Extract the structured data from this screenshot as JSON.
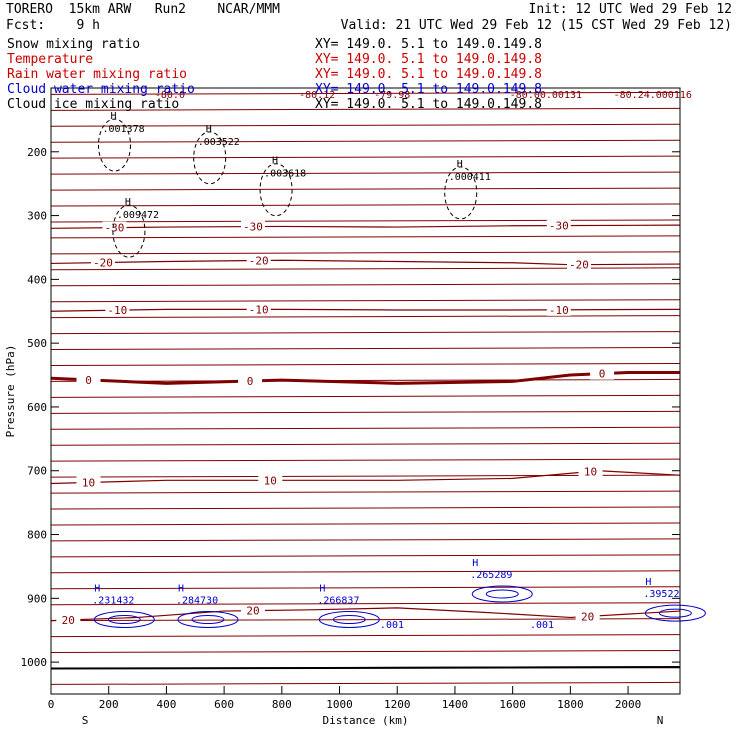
{
  "header": {
    "line1_left": "TORERO  15km ARW   Run2    NCAR/MMM",
    "line1_right": "Init: 12 UTC Wed 29 Feb 12",
    "line2_left": "Fcst:    9 h",
    "line2_right": "Valid: 21 UTC Wed 29 Feb 12 (15 CST Wed 29 Feb 12)"
  },
  "colors": {
    "snow": "#000000",
    "temperature": "#800000",
    "rain": "#cc0000",
    "cloud_water": "#0000cc",
    "cloud_ice": "#000000"
  },
  "chart_data": {
    "type": "contour",
    "xlabel": "Distance (km)",
    "ylabel": "Pressure (hPa)",
    "xlim": [
      0,
      2180
    ],
    "ylim": [
      1050,
      100
    ],
    "x_ticks": [
      0,
      200,
      400,
      600,
      800,
      1000,
      1200,
      1400,
      1600,
      1800,
      2000
    ],
    "y_ticks": [
      200,
      300,
      400,
      500,
      600,
      700,
      800,
      900,
      1000
    ],
    "x_end_labels": {
      "left": "S",
      "right": "N"
    },
    "legend": [
      {
        "name": "Snow mixing ratio",
        "range": "XY= 149.0.  5.1 to 149.0.149.8",
        "color": "#000000"
      },
      {
        "name": "Temperature",
        "range": "XY= 149.0.  5.1 to 149.0.149.8",
        "color": "#cc0000"
      },
      {
        "name": "Rain water mixing ratio",
        "range": "XY= 149.0.  5.1 to 149.0.149.8",
        "color": "#cc0000"
      },
      {
        "name": "Cloud water mixing ratio",
        "range": "XY= 149.0.  5.1 to 149.0.149.8",
        "color": "#0000cc"
      },
      {
        "name": "Cloud ice mixing ratio",
        "range": "XY= 149.0.  5.1 to 149.0.149.8",
        "color": "#000000"
      }
    ],
    "isotherms": [
      {
        "label": "-30",
        "points": [
          [
            0,
            320
          ],
          [
            400,
            318
          ],
          [
            800,
            317
          ],
          [
            1200,
            318
          ],
          [
            1600,
            316
          ],
          [
            2180,
            315
          ]
        ],
        "labels_at": [
          220,
          700,
          1760
        ]
      },
      {
        "label": "-20",
        "points": [
          [
            0,
            375
          ],
          [
            400,
            372
          ],
          [
            800,
            370
          ],
          [
            1200,
            372
          ],
          [
            1600,
            374
          ],
          [
            1800,
            377
          ],
          [
            2180,
            376
          ]
        ],
        "labels_at": [
          180,
          720,
          1830
        ]
      },
      {
        "label": "-10",
        "points": [
          [
            0,
            450
          ],
          [
            400,
            447
          ],
          [
            800,
            447
          ],
          [
            1200,
            448
          ],
          [
            1600,
            448
          ],
          [
            2180,
            447
          ]
        ],
        "labels_at": [
          230,
          720,
          1760
        ]
      },
      {
        "label": "0",
        "points": [
          [
            0,
            555
          ],
          [
            400,
            563
          ],
          [
            800,
            558
          ],
          [
            1200,
            563
          ],
          [
            1600,
            560
          ],
          [
            1800,
            550
          ],
          [
            2000,
            546
          ],
          [
            2180,
            546
          ]
        ],
        "labels_at": [
          130,
          690,
          1910
        ]
      },
      {
        "label": "10",
        "points": [
          [
            0,
            720
          ],
          [
            400,
            715
          ],
          [
            800,
            715
          ],
          [
            1200,
            715
          ],
          [
            1600,
            712
          ],
          [
            1900,
            700
          ],
          [
            2180,
            707
          ]
        ],
        "labels_at": [
          130,
          760,
          1870
        ]
      },
      {
        "label": "20",
        "points": [
          [
            0,
            935
          ],
          [
            300,
            930
          ],
          [
            600,
            920
          ],
          [
            900,
            918
          ],
          [
            1200,
            915
          ],
          [
            1500,
            922
          ],
          [
            1800,
            930
          ],
          [
            2180,
            920
          ]
        ],
        "labels_at": [
          60,
          700,
          1860
        ]
      }
    ],
    "cloud_ice_maxima": [
      {
        "x": 220,
        "p": 155,
        "label": ".001378"
      },
      {
        "x": 550,
        "p": 175,
        "label": ".003522"
      },
      {
        "x": 780,
        "p": 225,
        "label": ".003618"
      },
      {
        "x": 1420,
        "p": 230,
        "label": ".000411"
      },
      {
        "x": 270,
        "p": 290,
        "label": ".009472"
      }
    ],
    "cloud_water_maxima": [
      {
        "x": 150,
        "p": 905,
        "label": ".231432"
      },
      {
        "x": 440,
        "p": 905,
        "label": ".284730"
      },
      {
        "x": 930,
        "p": 905,
        "label": ".266837"
      },
      {
        "x": 1460,
        "p": 865,
        "label": ".265289"
      },
      {
        "x": 2060,
        "p": 895,
        "label": ".39522"
      }
    ],
    "cloud_water_minima": [
      {
        "x": 1140,
        "p": 940,
        "label": ".001"
      },
      {
        "x": 1660,
        "p": 940,
        "label": ".001"
      }
    ],
    "top_labels": [
      {
        "x": 360,
        "label": "-80.0"
      },
      {
        "x": 860,
        "label": "-80.12"
      },
      {
        "x": 1120,
        "label": "-79.98"
      },
      {
        "x": 1590,
        "label": "-80.00.00131"
      },
      {
        "x": 1950,
        "label": "-80.24.000116"
      }
    ]
  }
}
